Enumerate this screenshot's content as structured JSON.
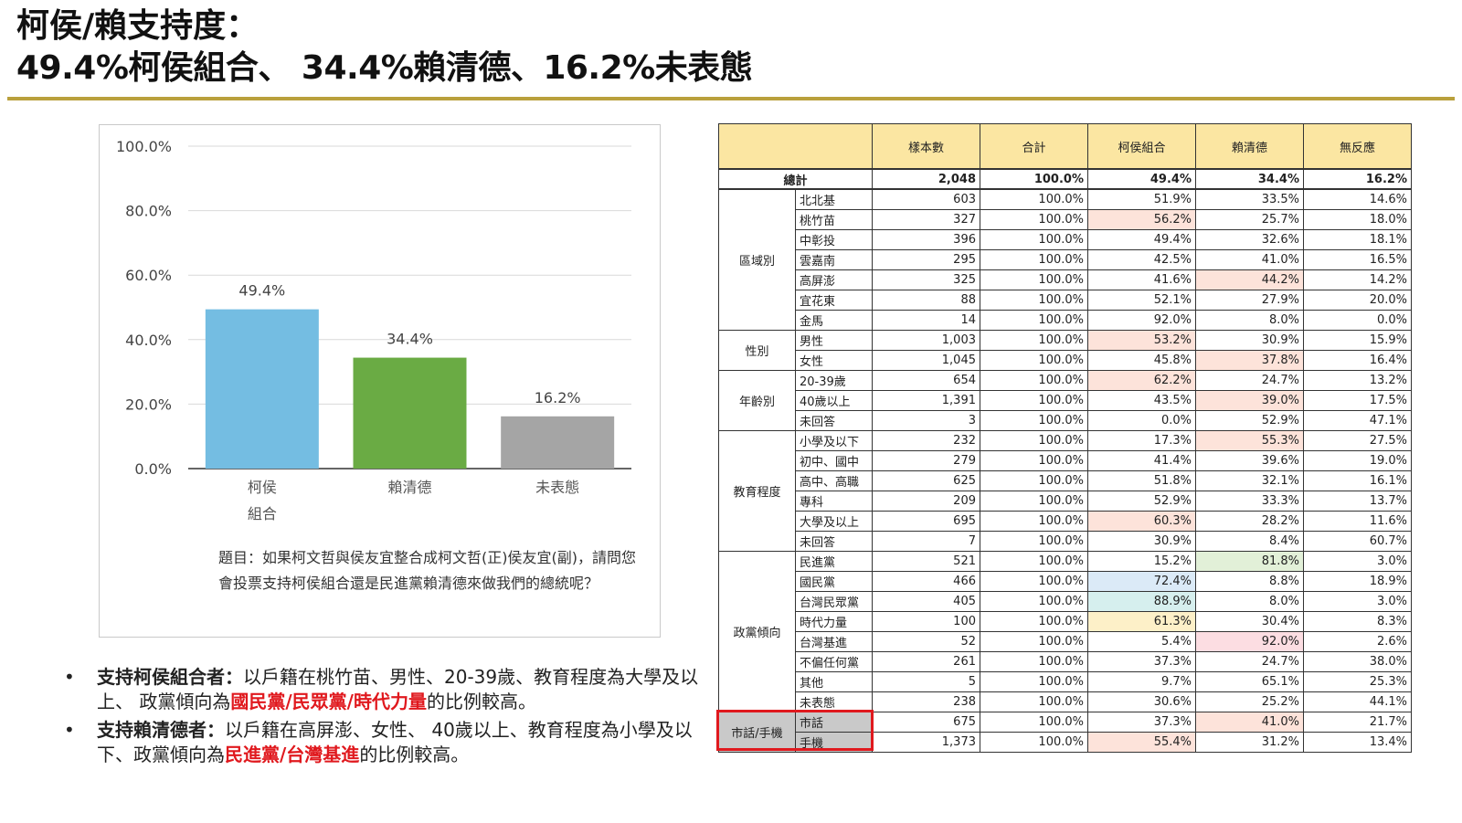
{
  "title": {
    "line1": "柯侯/賴支持度：",
    "line2": "49.4%柯侯組合、 34.4%賴清德、16.2%未表態"
  },
  "colors": {
    "accent_rule": "#b9a03c",
    "bar_blue": "#74bde2",
    "bar_green": "#6aab44",
    "bar_gray": "#a5a5a5",
    "highlight_red": "#e0191e",
    "header_bg": "#fbe6a2"
  },
  "chart_data": {
    "type": "bar",
    "categories": [
      "柯侯\n組合",
      "賴清德",
      "未表態"
    ],
    "values": [
      49.4,
      34.4,
      16.2
    ],
    "value_labels": [
      "49.4%",
      "34.4%",
      "16.2%"
    ],
    "yticks": [
      "0.0%",
      "20.0%",
      "40.0%",
      "60.0%",
      "80.0%",
      "100.0%"
    ],
    "ylim": [
      0,
      100
    ],
    "grid": true,
    "bar_colors": [
      "#74bde2",
      "#6aab44",
      "#a5a5a5"
    ],
    "title": "",
    "xlabel": "",
    "ylabel": ""
  },
  "question": "題目：如果柯文哲與侯友宜整合成柯文哲(正)侯友宜(副)，請問您會投票支持柯侯組合還是民進黨賴清德來做我們的總統呢？",
  "notes": [
    {
      "bold": "支持柯侯組合者：",
      "text": "以戶籍在桃竹苗、男性、20-39歲、教育程度為大學及以上、 政黨傾向為",
      "red": "國民黨/民眾黨/時代力量",
      "tail": "的比例較高。"
    },
    {
      "bold": "支持賴清德者：",
      "text": "以戶籍在高屏澎、女性、 40歲以上、教育程度為小學及以下、政黨傾向為",
      "red": "民進黨/台灣基進",
      "tail": "的比例較高。"
    }
  ],
  "table": {
    "headers": [
      "樣本數",
      "合計",
      "柯侯組合",
      "賴清德",
      "無反應"
    ],
    "total": {
      "label": "總計",
      "values": [
        "2,048",
        "100.0%",
        "49.4%",
        "34.4%",
        "16.2%"
      ]
    },
    "groups": [
      {
        "name": "區域別",
        "rows": [
          {
            "label": "北北基",
            "values": [
              "603",
              "100.0%",
              "51.9%",
              "33.5%",
              "14.6%"
            ]
          },
          {
            "label": "桃竹苗",
            "values": [
              "327",
              "100.0%",
              "56.2%",
              "25.7%",
              "18.0%"
            ],
            "hl": [
              2,
              "red"
            ]
          },
          {
            "label": "中彰投",
            "values": [
              "396",
              "100.0%",
              "49.4%",
              "32.6%",
              "18.1%"
            ]
          },
          {
            "label": "雲嘉南",
            "values": [
              "295",
              "100.0%",
              "42.5%",
              "41.0%",
              "16.5%"
            ]
          },
          {
            "label": "高屏澎",
            "values": [
              "325",
              "100.0%",
              "41.6%",
              "44.2%",
              "14.2%"
            ],
            "hl": [
              3,
              "red"
            ]
          },
          {
            "label": "宜花東",
            "values": [
              "88",
              "100.0%",
              "52.1%",
              "27.9%",
              "20.0%"
            ]
          },
          {
            "label": "金馬",
            "values": [
              "14",
              "100.0%",
              "92.0%",
              "8.0%",
              "0.0%"
            ]
          }
        ]
      },
      {
        "name": "性別",
        "rows": [
          {
            "label": "男性",
            "values": [
              "1,003",
              "100.0%",
              "53.2%",
              "30.9%",
              "15.9%"
            ],
            "hl": [
              2,
              "red"
            ]
          },
          {
            "label": "女性",
            "values": [
              "1,045",
              "100.0%",
              "45.8%",
              "37.8%",
              "16.4%"
            ],
            "hl": [
              3,
              "red"
            ]
          }
        ]
      },
      {
        "name": "年齡別",
        "rows": [
          {
            "label": "20-39歲",
            "values": [
              "654",
              "100.0%",
              "62.2%",
              "24.7%",
              "13.2%"
            ],
            "hl": [
              2,
              "red"
            ]
          },
          {
            "label": "40歲以上",
            "values": [
              "1,391",
              "100.0%",
              "43.5%",
              "39.0%",
              "17.5%"
            ],
            "hl": [
              3,
              "red"
            ]
          },
          {
            "label": "未回答",
            "values": [
              "3",
              "100.0%",
              "0.0%",
              "52.9%",
              "47.1%"
            ]
          }
        ]
      },
      {
        "name": "教育程度",
        "rows": [
          {
            "label": "小學及以下",
            "values": [
              "232",
              "100.0%",
              "17.3%",
              "55.3%",
              "27.5%"
            ],
            "hl": [
              3,
              "red"
            ]
          },
          {
            "label": "初中、國中",
            "values": [
              "279",
              "100.0%",
              "41.4%",
              "39.6%",
              "19.0%"
            ]
          },
          {
            "label": "高中、高職",
            "values": [
              "625",
              "100.0%",
              "51.8%",
              "32.1%",
              "16.1%"
            ]
          },
          {
            "label": "專科",
            "values": [
              "209",
              "100.0%",
              "52.9%",
              "33.3%",
              "13.7%"
            ]
          },
          {
            "label": "大學及以上",
            "values": [
              "695",
              "100.0%",
              "60.3%",
              "28.2%",
              "11.6%"
            ],
            "hl": [
              2,
              "red"
            ]
          },
          {
            "label": "未回答",
            "values": [
              "7",
              "100.0%",
              "30.9%",
              "8.4%",
              "60.7%"
            ]
          }
        ]
      },
      {
        "name": "政黨傾向",
        "rows": [
          {
            "label": "民進黨",
            "values": [
              "521",
              "100.0%",
              "15.2%",
              "81.8%",
              "3.0%"
            ],
            "hl": [
              3,
              "green"
            ]
          },
          {
            "label": "國民黨",
            "values": [
              "466",
              "100.0%",
              "72.4%",
              "8.8%",
              "18.9%"
            ],
            "hl": [
              2,
              "blue"
            ]
          },
          {
            "label": "台灣民眾黨",
            "values": [
              "405",
              "100.0%",
              "88.9%",
              "8.0%",
              "3.0%"
            ],
            "hl": [
              2,
              "teal"
            ]
          },
          {
            "label": "時代力量",
            "values": [
              "100",
              "100.0%",
              "61.3%",
              "30.4%",
              "8.3%"
            ],
            "hl": [
              2,
              "yellow"
            ]
          },
          {
            "label": "台灣基進",
            "values": [
              "52",
              "100.0%",
              "5.4%",
              "92.0%",
              "2.6%"
            ],
            "hl": [
              3,
              "pink"
            ]
          },
          {
            "label": "不偏任何黨",
            "values": [
              "261",
              "100.0%",
              "37.3%",
              "24.7%",
              "38.0%"
            ]
          },
          {
            "label": "其他",
            "values": [
              "5",
              "100.0%",
              "9.7%",
              "65.1%",
              "25.3%"
            ]
          },
          {
            "label": "未表態",
            "values": [
              "238",
              "100.0%",
              "30.6%",
              "25.2%",
              "44.1%"
            ]
          }
        ]
      },
      {
        "name": "市話/手機",
        "gray": true,
        "rows": [
          {
            "label": "市話",
            "values": [
              "675",
              "100.0%",
              "37.3%",
              "41.0%",
              "21.7%"
            ],
            "hl": [
              3,
              "red"
            ]
          },
          {
            "label": "手機",
            "values": [
              "1,373",
              "100.0%",
              "55.4%",
              "31.2%",
              "13.4%"
            ],
            "hl": [
              2,
              "red"
            ]
          }
        ]
      }
    ]
  }
}
